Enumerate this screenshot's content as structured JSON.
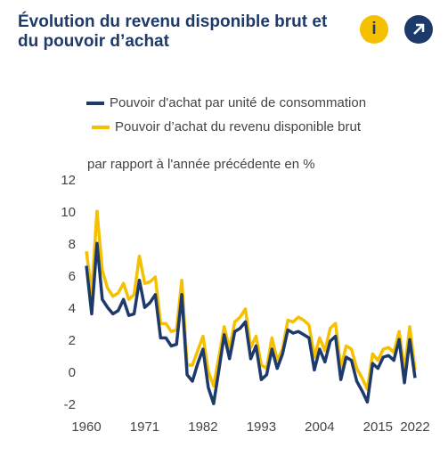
{
  "buttons": {
    "info": "i"
  },
  "chart_data": {
    "type": "line",
    "title": "Évolution du revenu disponible brut et du pouvoir d’achat",
    "subtitle": "par rapport à l'année précédente en %",
    "x": [
      1960,
      1961,
      1962,
      1963,
      1964,
      1965,
      1966,
      1967,
      1968,
      1969,
      1970,
      1971,
      1972,
      1973,
      1974,
      1975,
      1976,
      1977,
      1978,
      1979,
      1980,
      1981,
      1982,
      1983,
      1984,
      1985,
      1986,
      1987,
      1988,
      1989,
      1990,
      1991,
      1992,
      1993,
      1994,
      1995,
      1996,
      1997,
      1998,
      1999,
      2000,
      2001,
      2002,
      2003,
      2004,
      2005,
      2006,
      2007,
      2008,
      2009,
      2010,
      2011,
      2012,
      2013,
      2014,
      2015,
      2016,
      2017,
      2018,
      2019,
      2020,
      2021,
      2022
    ],
    "xlim": [
      1960,
      2022
    ],
    "xticks": [
      1960,
      1971,
      1982,
      1993,
      2004,
      2015,
      2022
    ],
    "ylim": [
      -2,
      12
    ],
    "yticks": [
      -2,
      0,
      2,
      4,
      6,
      8,
      10,
      12
    ],
    "grid": false,
    "series": [
      {
        "name": "Pouvoir d'achat par unité de consommation",
        "color": "#1d3a6b",
        "values": [
          6.7,
          3.7,
          8.1,
          4.6,
          4.1,
          3.7,
          3.9,
          4.6,
          3.6,
          3.7,
          5.8,
          4.1,
          4.4,
          4.9,
          2.2,
          2.2,
          1.7,
          1.8,
          4.9,
          -0.1,
          -0.5,
          0.6,
          1.5,
          -0.9,
          -1.9,
          0.2,
          2.4,
          0.9,
          2.6,
          2.8,
          3.2,
          0.9,
          1.7,
          -0.4,
          -0.1,
          1.5,
          0.3,
          1.2,
          2.7,
          2.5,
          2.6,
          2.4,
          2.2,
          0.2,
          1.5,
          0.7,
          2.0,
          2.3,
          -0.4,
          1.0,
          0.8,
          -0.5,
          -1.1,
          -1.8,
          0.6,
          0.3,
          1.0,
          1.1,
          0.8,
          2.1,
          -0.6,
          2.1,
          -0.3
        ]
      },
      {
        "name": "Pouvoir d’achat du revenu disponible brut",
        "color": "#f5c000",
        "values": [
          7.6,
          5.0,
          10.1,
          6.4,
          5.3,
          4.8,
          5.0,
          5.6,
          4.6,
          4.9,
          7.3,
          5.6,
          5.7,
          6.0,
          3.1,
          3.1,
          2.6,
          2.7,
          5.8,
          0.5,
          0.5,
          1.4,
          2.3,
          0.1,
          -0.8,
          1.0,
          2.9,
          1.5,
          3.2,
          3.5,
          4.0,
          1.6,
          2.3,
          0.5,
          0.3,
          2.2,
          0.8,
          1.5,
          3.3,
          3.2,
          3.5,
          3.3,
          3.0,
          1.0,
          2.2,
          1.4,
          2.8,
          3.1,
          0.3,
          1.7,
          1.5,
          0.3,
          -0.3,
          -1.0,
          1.2,
          0.8,
          1.5,
          1.6,
          1.3,
          2.6,
          0.2,
          2.9,
          0.2
        ]
      }
    ]
  }
}
